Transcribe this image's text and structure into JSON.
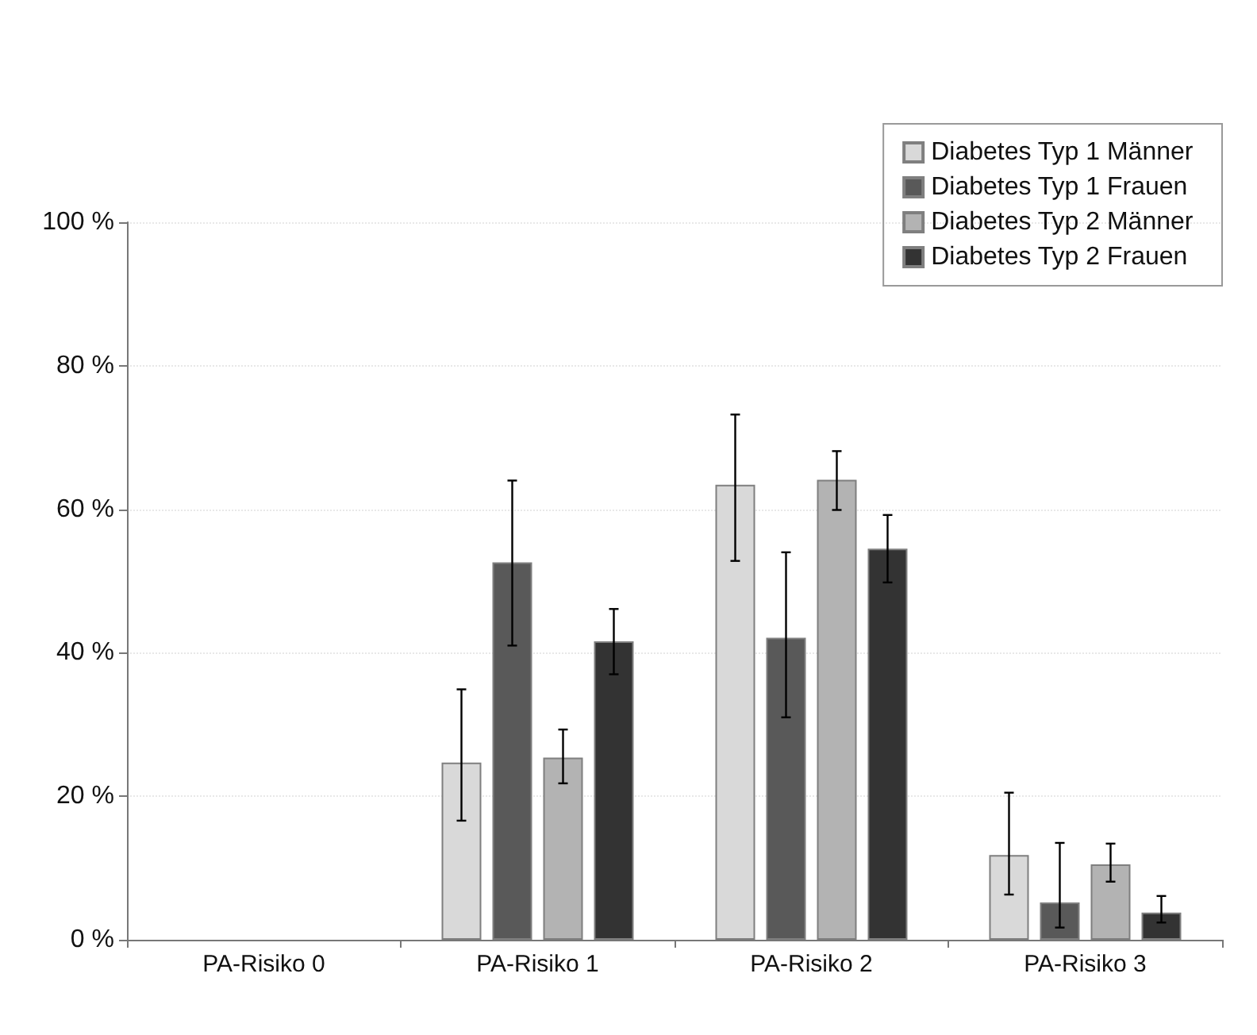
{
  "chart_data": {
    "type": "bar",
    "categories": [
      "PA-Risiko 0",
      "PA-Risiko 1",
      "PA-Risiko 2",
      "PA-Risiko 3"
    ],
    "series": [
      {
        "name": "Diabetes Typ 1 Männer",
        "color": "#d9d9d9",
        "values": [
          null,
          24.7,
          63.4,
          11.8
        ],
        "errors": [
          null,
          [
            16.6,
            34.9
          ],
          [
            52.8,
            73.2
          ],
          [
            6.3,
            20.5
          ]
        ]
      },
      {
        "name": "Diabetes Typ 1 Frauen",
        "color": "#595959",
        "values": [
          null,
          52.6,
          42.1,
          5.2
        ],
        "errors": [
          null,
          [
            41.0,
            64.0
          ],
          [
            31.0,
            54.0
          ],
          [
            1.7,
            13.5
          ]
        ]
      },
      {
        "name": "Diabetes Typ 2 Männer",
        "color": "#b3b3b3",
        "values": [
          null,
          25.4,
          64.1,
          10.5
        ],
        "errors": [
          null,
          [
            21.8,
            29.3
          ],
          [
            59.9,
            68.1
          ],
          [
            8.1,
            13.4
          ]
        ]
      },
      {
        "name": "Diabetes Typ 2 Frauen",
        "color": "#333333",
        "values": [
          null,
          41.6,
          54.5,
          3.8
        ],
        "errors": [
          null,
          [
            37.0,
            46.1
          ],
          [
            49.8,
            59.2
          ],
          [
            2.4,
            6.1
          ]
        ]
      }
    ],
    "ylim": [
      0,
      100
    ],
    "yticks": [
      {
        "value": 0,
        "label": "0 %"
      },
      {
        "value": 20,
        "label": "20 %"
      },
      {
        "value": 40,
        "label": "40 %"
      },
      {
        "value": 60,
        "label": "60 %"
      },
      {
        "value": 80,
        "label": "80 %"
      },
      {
        "value": 100,
        "label": "100 %"
      }
    ],
    "grid": "y",
    "legend": "top right"
  }
}
